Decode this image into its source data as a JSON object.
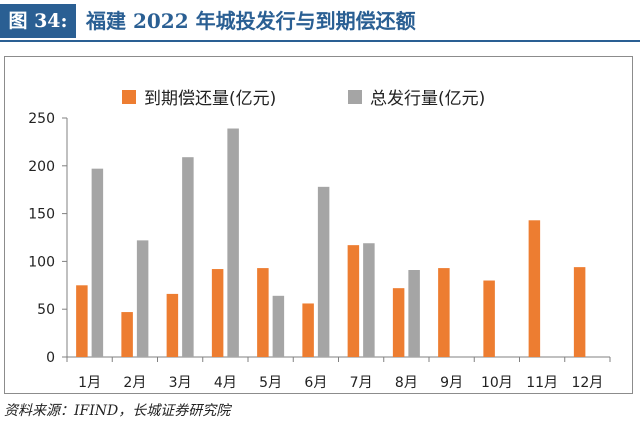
{
  "figure": {
    "label": "图 34:",
    "title": "福建 2022 年城投发行与到期偿还额",
    "source": "资料来源：IFIND，长城证券研究院"
  },
  "colors": {
    "title_blue": "#2a5f93",
    "series_orange": "#ed7d31",
    "series_gray": "#a5a5a5"
  },
  "chart_data": {
    "type": "bar",
    "title": "",
    "xlabel": "",
    "ylabel": "",
    "ylim": [
      0,
      250
    ],
    "yticks": [
      0,
      50,
      100,
      150,
      200,
      250
    ],
    "grid": false,
    "legend_position": "top",
    "categories": [
      "1月",
      "2月",
      "3月",
      "4月",
      "5月",
      "6月",
      "7月",
      "8月",
      "9月",
      "10月",
      "11月",
      "12月"
    ],
    "series": [
      {
        "name": "到期偿还量(亿元)",
        "color": "#ed7d31",
        "values": [
          75,
          47,
          66,
          92,
          93,
          56,
          117,
          72,
          93,
          80,
          143,
          94
        ]
      },
      {
        "name": "总发行量(亿元)",
        "color": "#a5a5a5",
        "values": [
          197,
          122,
          209,
          239,
          64,
          178,
          119,
          91,
          0,
          0,
          0,
          0
        ]
      }
    ]
  }
}
